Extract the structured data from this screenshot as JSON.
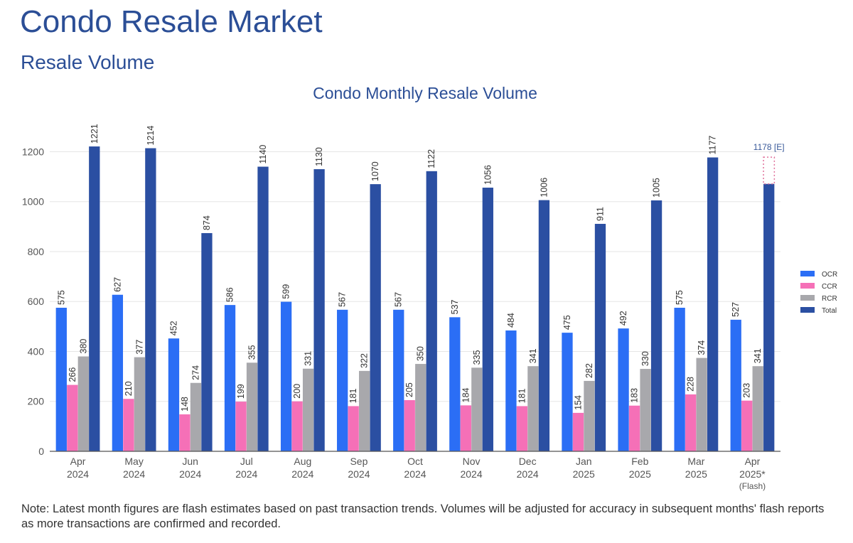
{
  "page": {
    "title": "Condo Resale Market",
    "subtitle": "Resale Volume",
    "note": "Note: Latest month figures are flash estimates based on past transaction trends. Volumes will be adjusted for accuracy in subsequent months' flash reports as more transactions are confirmed and recorded."
  },
  "chart_data": {
    "type": "bar",
    "title": "Condo Monthly Resale Volume",
    "xlabel": "",
    "ylabel": "",
    "ylim": [
      0,
      1300
    ],
    "yticks": [
      0,
      200,
      400,
      600,
      800,
      1000,
      1200
    ],
    "grid": true,
    "legend_position": "right",
    "categories": [
      [
        "Apr",
        "2024"
      ],
      [
        "May",
        "2024"
      ],
      [
        "Jun",
        "2024"
      ],
      [
        "Jul",
        "2024"
      ],
      [
        "Aug",
        "2024"
      ],
      [
        "Sep",
        "2024"
      ],
      [
        "Oct",
        "2024"
      ],
      [
        "Nov",
        "2024"
      ],
      [
        "Dec",
        "2024"
      ],
      [
        "Jan",
        "2025"
      ],
      [
        "Feb",
        "2025"
      ],
      [
        "Mar",
        "2025"
      ],
      [
        "Apr",
        "2025*",
        "(Flash)"
      ]
    ],
    "series": [
      {
        "name": "OCR",
        "color": "#2b6ef5",
        "values": [
          575,
          627,
          452,
          586,
          599,
          567,
          567,
          537,
          484,
          475,
          492,
          575,
          527
        ]
      },
      {
        "name": "CCR",
        "color": "#f570b7",
        "values": [
          266,
          210,
          148,
          199,
          200,
          181,
          205,
          184,
          181,
          154,
          183,
          228,
          203
        ]
      },
      {
        "name": "RCR",
        "color": "#a8a8ac",
        "values": [
          380,
          377,
          274,
          355,
          331,
          322,
          350,
          335,
          341,
          282,
          330,
          374,
          341
        ]
      },
      {
        "name": "Total",
        "color": "#2b4fa2",
        "values": [
          1221,
          1214,
          874,
          1140,
          1130,
          1070,
          1122,
          1056,
          1006,
          911,
          1005,
          1177,
          1071
        ],
        "labels": [
          "1221",
          "1214",
          "874",
          "1140",
          "1130",
          "1070",
          "1122",
          "1056",
          "1006",
          "911",
          "1005",
          "1177",
          ""
        ]
      }
    ],
    "estimate": {
      "index": 12,
      "value": 1178,
      "label": "1178 [E]",
      "color": "#e0709a"
    }
  }
}
